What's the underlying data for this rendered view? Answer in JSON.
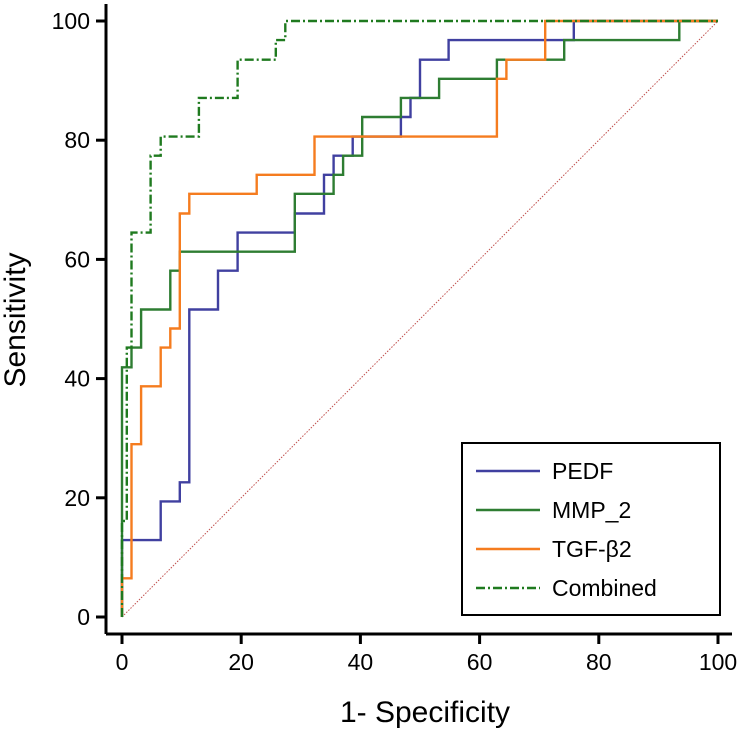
{
  "chart_data": {
    "type": "line",
    "title": "",
    "xlabel": "1- Specificity",
    "ylabel": "Sensitivity",
    "xlim": [
      0,
      100
    ],
    "ylim": [
      0,
      100
    ],
    "xticks": [
      0,
      20,
      40,
      60,
      80,
      100
    ],
    "yticks": [
      0,
      20,
      40,
      60,
      80,
      100
    ],
    "legend_position": "bottom-right",
    "reference_line": {
      "name": "reference",
      "color": "#c0504d",
      "style": "dotted",
      "points": [
        [
          0,
          0
        ],
        [
          100,
          100
        ]
      ]
    },
    "series": [
      {
        "name": "PEDF",
        "color": "#4040a0",
        "style": "solid",
        "points": [
          [
            0,
            0
          ],
          [
            0,
            12.9
          ],
          [
            6.5,
            12.9
          ],
          [
            6.5,
            19.4
          ],
          [
            9.7,
            19.4
          ],
          [
            9.7,
            22.6
          ],
          [
            11.3,
            22.6
          ],
          [
            11.3,
            51.6
          ],
          [
            16.1,
            51.6
          ],
          [
            16.1,
            58.1
          ],
          [
            19.4,
            58.1
          ],
          [
            19.4,
            64.5
          ],
          [
            29,
            64.5
          ],
          [
            29,
            67.7
          ],
          [
            33.9,
            67.7
          ],
          [
            33.9,
            74.2
          ],
          [
            35.5,
            74.2
          ],
          [
            35.5,
            77.4
          ],
          [
            38.7,
            77.4
          ],
          [
            38.7,
            80.6
          ],
          [
            46.8,
            80.6
          ],
          [
            46.8,
            83.9
          ],
          [
            48.4,
            83.9
          ],
          [
            48.4,
            87.1
          ],
          [
            50,
            87.1
          ],
          [
            50,
            93.5
          ],
          [
            54.8,
            93.5
          ],
          [
            54.8,
            96.8
          ],
          [
            75.8,
            96.8
          ],
          [
            75.8,
            100
          ],
          [
            100,
            100
          ]
        ]
      },
      {
        "name": "MMP_2",
        "color": "#2e7d32",
        "style": "solid",
        "points": [
          [
            0,
            0
          ],
          [
            0,
            41.9
          ],
          [
            1.6,
            41.9
          ],
          [
            1.6,
            45.2
          ],
          [
            3.2,
            45.2
          ],
          [
            3.2,
            51.6
          ],
          [
            8.1,
            51.6
          ],
          [
            8.1,
            58.1
          ],
          [
            9.7,
            58.1
          ],
          [
            9.7,
            61.3
          ],
          [
            29,
            61.3
          ],
          [
            29,
            71
          ],
          [
            35.5,
            71
          ],
          [
            35.5,
            74.2
          ],
          [
            37.1,
            74.2
          ],
          [
            37.1,
            77.4
          ],
          [
            40.3,
            77.4
          ],
          [
            40.3,
            83.9
          ],
          [
            46.8,
            83.9
          ],
          [
            46.8,
            87.1
          ],
          [
            53.2,
            87.1
          ],
          [
            53.2,
            90.3
          ],
          [
            62.9,
            90.3
          ],
          [
            62.9,
            93.5
          ],
          [
            74.2,
            93.5
          ],
          [
            74.2,
            96.8
          ],
          [
            93.5,
            96.8
          ],
          [
            93.5,
            100
          ],
          [
            100,
            100
          ]
        ]
      },
      {
        "name": "TGF-β2",
        "color": "#f57c1f",
        "style": "solid",
        "points": [
          [
            0,
            0
          ],
          [
            0,
            6.5
          ],
          [
            1.6,
            6.5
          ],
          [
            1.6,
            29
          ],
          [
            3.2,
            29
          ],
          [
            3.2,
            38.7
          ],
          [
            6.5,
            38.7
          ],
          [
            6.5,
            45.2
          ],
          [
            8.1,
            45.2
          ],
          [
            8.1,
            48.4
          ],
          [
            9.7,
            48.4
          ],
          [
            9.7,
            67.7
          ],
          [
            11.3,
            67.7
          ],
          [
            11.3,
            71
          ],
          [
            22.6,
            71
          ],
          [
            22.6,
            74.2
          ],
          [
            32.3,
            74.2
          ],
          [
            32.3,
            80.6
          ],
          [
            62.9,
            80.6
          ],
          [
            62.9,
            90.3
          ],
          [
            64.5,
            90.3
          ],
          [
            64.5,
            93.5
          ],
          [
            71,
            93.5
          ],
          [
            71,
            100
          ],
          [
            100,
            100
          ]
        ]
      },
      {
        "name": "Combined",
        "color": "#1f7a1f",
        "style": "dash-dot",
        "points": [
          [
            0,
            0
          ],
          [
            0,
            16.1
          ],
          [
            0.8,
            16.1
          ],
          [
            0.8,
            45.2
          ],
          [
            1.6,
            45.2
          ],
          [
            1.6,
            64.5
          ],
          [
            4.8,
            64.5
          ],
          [
            4.8,
            77.4
          ],
          [
            6.5,
            77.4
          ],
          [
            6.5,
            80.6
          ],
          [
            12.9,
            80.6
          ],
          [
            12.9,
            87.1
          ],
          [
            19.4,
            87.1
          ],
          [
            19.4,
            93.5
          ],
          [
            25.8,
            93.5
          ],
          [
            25.8,
            96.8
          ],
          [
            27.4,
            96.8
          ],
          [
            27.4,
            100
          ],
          [
            100,
            100
          ]
        ]
      }
    ]
  }
}
